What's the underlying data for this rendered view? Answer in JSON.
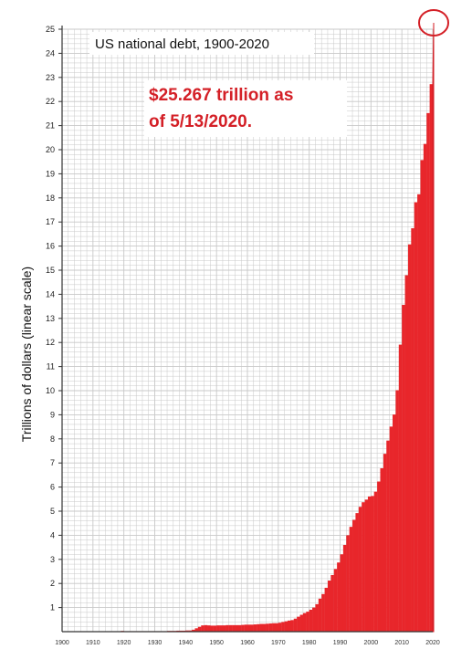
{
  "chart_data": {
    "type": "bar",
    "title": "US national debt, 1900-2020",
    "annotation_line1": "$25.267 trillion as",
    "annotation_line2": "of 5/13/2020.",
    "xlabel": "",
    "ylabel": "Trillions of dollars (linear scale)",
    "xlim": [
      1900,
      2020
    ],
    "ylim": [
      0,
      25
    ],
    "grid": true,
    "colors": {
      "bar": "#e8262b",
      "annotation": "#d42027",
      "grid": "#c8c8c8",
      "circle": "#d42027"
    },
    "yticks": [
      "1",
      "2",
      "3",
      "4",
      "5",
      "6",
      "7",
      "8",
      "9",
      "10",
      "11",
      "12",
      "13",
      "14",
      "15",
      "16",
      "17",
      "18",
      "19",
      "20",
      "21",
      "22",
      "23",
      "24",
      "25"
    ],
    "xticks": [
      "1900",
      "1910",
      "1920",
      "1930",
      "1940",
      "1950",
      "1960",
      "1970",
      "1980",
      "1990",
      "2000",
      "2010",
      "2020"
    ],
    "years": [
      1900,
      1901,
      1902,
      1903,
      1904,
      1905,
      1906,
      1907,
      1908,
      1909,
      1910,
      1911,
      1912,
      1913,
      1914,
      1915,
      1916,
      1917,
      1918,
      1919,
      1920,
      1921,
      1922,
      1923,
      1924,
      1925,
      1926,
      1927,
      1928,
      1929,
      1930,
      1931,
      1932,
      1933,
      1934,
      1935,
      1936,
      1937,
      1938,
      1939,
      1940,
      1941,
      1942,
      1943,
      1944,
      1945,
      1946,
      1947,
      1948,
      1949,
      1950,
      1951,
      1952,
      1953,
      1954,
      1955,
      1956,
      1957,
      1958,
      1959,
      1960,
      1961,
      1962,
      1963,
      1964,
      1965,
      1966,
      1967,
      1968,
      1969,
      1970,
      1971,
      1972,
      1973,
      1974,
      1975,
      1976,
      1977,
      1978,
      1979,
      1980,
      1981,
      1982,
      1983,
      1984,
      1985,
      1986,
      1987,
      1988,
      1989,
      1990,
      1991,
      1992,
      1993,
      1994,
      1995,
      1996,
      1997,
      1998,
      1999,
      2000,
      2001,
      2002,
      2003,
      2004,
      2005,
      2006,
      2007,
      2008,
      2009,
      2010,
      2011,
      2012,
      2013,
      2014,
      2015,
      2016,
      2017,
      2018,
      2019
    ],
    "values": [
      0.0,
      0.0,
      0.0,
      0.0,
      0.0,
      0.0,
      0.0,
      0.0,
      0.0,
      0.0,
      0.0,
      0.0,
      0.0,
      0.0,
      0.0,
      0.0,
      0.0,
      0.0,
      0.01,
      0.03,
      0.02,
      0.02,
      0.02,
      0.02,
      0.02,
      0.02,
      0.02,
      0.02,
      0.02,
      0.02,
      0.02,
      0.02,
      0.02,
      0.02,
      0.03,
      0.03,
      0.03,
      0.04,
      0.04,
      0.04,
      0.05,
      0.05,
      0.08,
      0.14,
      0.2,
      0.26,
      0.27,
      0.26,
      0.25,
      0.25,
      0.26,
      0.26,
      0.26,
      0.27,
      0.27,
      0.27,
      0.27,
      0.27,
      0.28,
      0.29,
      0.29,
      0.29,
      0.3,
      0.31,
      0.32,
      0.32,
      0.33,
      0.34,
      0.35,
      0.35,
      0.37,
      0.4,
      0.43,
      0.46,
      0.48,
      0.54,
      0.62,
      0.7,
      0.77,
      0.83,
      0.91,
      1.0,
      1.14,
      1.37,
      1.56,
      1.82,
      2.12,
      2.35,
      2.6,
      2.87,
      3.21,
      3.6,
      4.0,
      4.35,
      4.64,
      4.92,
      5.18,
      5.37,
      5.48,
      5.61,
      5.63,
      5.81,
      6.23,
      6.78,
      7.38,
      7.93,
      8.51,
      9.01,
      10.02,
      11.91,
      13.56,
      14.79,
      16.07,
      16.74,
      17.82,
      18.15,
      19.57,
      20.24,
      21.52,
      22.72
    ],
    "end_point": {
      "x": 2020.3,
      "y": 25.267
    }
  }
}
